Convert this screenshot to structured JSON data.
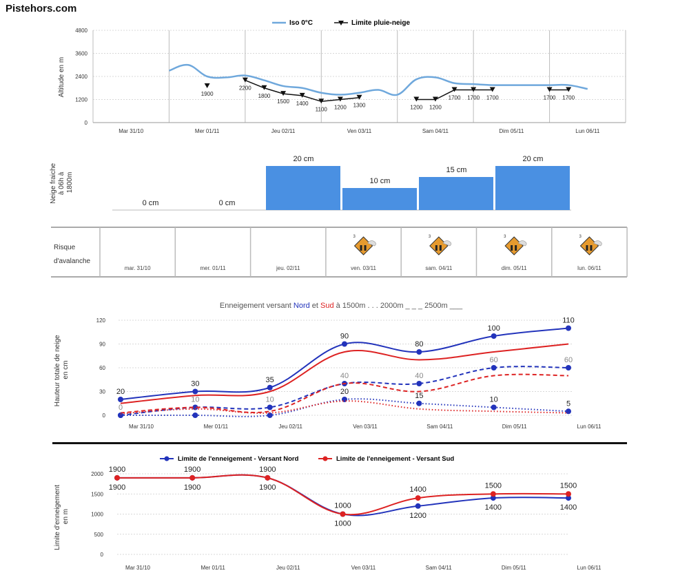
{
  "site": "Pistehors.com",
  "chart_data": [
    {
      "id": "iso",
      "type": "line",
      "ylabel": "Altitude en m",
      "ylim": [
        0,
        4800
      ],
      "yticks": [
        0,
        1200,
        2400,
        3600,
        4800
      ],
      "grid": true,
      "legend": "top",
      "categories": [
        "Mar 31/10",
        "Mer 01/11",
        "Jeu 02/11",
        "Ven 03/11",
        "Sam 04/11",
        "Dim 05/11",
        "Lun 06/11"
      ],
      "series": [
        {
          "name": "Iso 0°C",
          "color": "#6fa8dc",
          "x": [
            1,
            1.25,
            1.5,
            1.75,
            2,
            2.25,
            2.5,
            2.75,
            3,
            3.25,
            3.5,
            3.75,
            4,
            4.25,
            4.5,
            4.75,
            5,
            5.25,
            5.5,
            5.75,
            6,
            6.25,
            6.5
          ],
          "y": [
            2700,
            3000,
            2400,
            2350,
            2450,
            2200,
            1900,
            1800,
            1550,
            1450,
            1550,
            1700,
            1450,
            2250,
            2350,
            2050,
            2000,
            1950,
            1950,
            1950,
            1950,
            1950,
            1750
          ]
        },
        {
          "name": "Limite pluie-neige",
          "color": "#111",
          "segments": [
            [
              {
                "x": 1.5,
                "y": 1900,
                "label": "1900"
              }
            ],
            [
              {
                "x": 2,
                "y": 2200,
                "label": "2200"
              },
              {
                "x": 2.25,
                "y": 1800,
                "label": "1800"
              },
              {
                "x": 2.5,
                "y": 1500,
                "label": "1500"
              },
              {
                "x": 2.75,
                "y": 1400,
                "label": "1400"
              },
              {
                "x": 3,
                "y": 1100,
                "label": "1100"
              },
              {
                "x": 3.25,
                "y": 1200,
                "label": "1200"
              },
              {
                "x": 3.5,
                "y": 1300,
                "label": "1300"
              }
            ],
            [
              {
                "x": 4.25,
                "y": 1200,
                "label": "1200"
              },
              {
                "x": 4.5,
                "y": 1200,
                "label": "1200"
              },
              {
                "x": 4.75,
                "y": 1700,
                "label": "1700"
              },
              {
                "x": 5,
                "y": 1700,
                "label": "1700"
              },
              {
                "x": 5.25,
                "y": 1700,
                "label": "1700"
              }
            ],
            [
              {
                "x": 6,
                "y": 1700,
                "label": "1700"
              },
              {
                "x": 6.25,
                "y": 1700,
                "label": "1700"
              }
            ]
          ]
        }
      ]
    },
    {
      "id": "fresh",
      "type": "bar",
      "ylabel": [
        "Neige fraiche",
        "à 06h à",
        "1800m"
      ],
      "ylim": [
        0,
        20
      ],
      "color": "#4a90e2",
      "values": [
        0,
        0,
        20,
        10,
        15,
        20
      ],
      "labels": [
        "0 cm",
        "0 cm",
        "20 cm",
        "10 cm",
        "15 cm",
        "20 cm"
      ]
    },
    {
      "id": "depth",
      "type": "line",
      "title_parts": {
        "prefix": "Enneigement versant ",
        "north": "Nord",
        "mid": " et ",
        "south": "Sud",
        "suffix": " à  1500m . . .   2000m _ _ _   2500m ___"
      },
      "ylabel": [
        "Hauteur totale de neige",
        "en cm"
      ],
      "ylim": [
        0,
        120
      ],
      "yticks": [
        0,
        30,
        60,
        90,
        120
      ],
      "grid": true,
      "categories": [
        "Mar 31/10",
        "Mer 01/11",
        "Jeu 02/11",
        "Ven 03/11",
        "Sam 04/11",
        "Dim 05/11",
        "Lun 06/11"
      ],
      "series": [
        {
          "name": "Nord 2500m",
          "color": "#2233bb",
          "style": "solid",
          "markers": true,
          "values": [
            20,
            30,
            35,
            90,
            80,
            100,
            110
          ],
          "labels": [
            "20",
            "30",
            "35",
            "90",
            "80",
            "100",
            "110"
          ]
        },
        {
          "name": "Sud 2500m",
          "color": "#dd2222",
          "style": "solid",
          "markers": false,
          "values": [
            15,
            25,
            30,
            80,
            70,
            80,
            90
          ]
        },
        {
          "name": "Nord 2000m",
          "color": "#2233bb",
          "style": "dashed",
          "markers": true,
          "values": [
            0,
            10,
            10,
            40,
            40,
            60,
            60
          ],
          "labels": [
            "0",
            "10",
            "10",
            "40",
            "40",
            "60",
            "60"
          ],
          "labelColor": "#888"
        },
        {
          "name": "Sud 2000m",
          "color": "#dd2222",
          "style": "dashed",
          "markers": false,
          "values": [
            3,
            10,
            5,
            40,
            30,
            50,
            50
          ]
        },
        {
          "name": "Nord 1500m",
          "color": "#2233bb",
          "style": "dotted",
          "markers": true,
          "values": [
            0,
            0,
            0,
            20,
            15,
            10,
            5
          ],
          "labels": [
            "",
            "",
            "",
            "20",
            "15",
            "10",
            "5"
          ]
        },
        {
          "name": "Sud 1500m",
          "color": "#dd2222",
          "style": "dotted",
          "markers": false,
          "values": [
            2,
            8,
            3,
            18,
            8,
            5,
            3
          ]
        }
      ]
    },
    {
      "id": "limit",
      "type": "line",
      "ylabel": [
        "Limite d'enneigement",
        "en m"
      ],
      "ylim": [
        0,
        2000
      ],
      "yticks": [
        0,
        500,
        1000,
        1500,
        2000
      ],
      "grid": true,
      "legend": "top",
      "categories": [
        "Mar 31/10",
        "Mer 01/11",
        "Jeu 02/11",
        "Ven 03/11",
        "Sam 04/11",
        "Dim 05/11",
        "Lun 06/11"
      ],
      "series": [
        {
          "name": "Limite de l'enneigement - Versant Nord",
          "color": "#2233bb",
          "values": [
            1900,
            1900,
            1900,
            1000,
            1200,
            1400,
            1400
          ],
          "labels": [
            "1900",
            "1900",
            "1900",
            "1000",
            "1200",
            "1400",
            "1400"
          ]
        },
        {
          "name": "Limite de l'enneigement - Versant Sud",
          "color": "#dd2222",
          "values": [
            1900,
            1900,
            1900,
            1000,
            1400,
            1500,
            1500
          ],
          "labels": [
            "1900",
            "1900",
            "1900",
            "1000",
            "1400",
            "1500",
            "1500"
          ]
        }
      ]
    }
  ],
  "avalanche": {
    "label": [
      "Risque",
      "d'avalanche"
    ],
    "days": [
      "mar. 31/10",
      "mer. 01/11",
      "jeu. 02/11",
      "ven. 03/11",
      "sam. 04/11",
      "dim. 05/11",
      "lun. 06/11"
    ],
    "risk": [
      null,
      null,
      null,
      3,
      3,
      3,
      3
    ],
    "icon": "avalanche-risk-3-icon"
  }
}
